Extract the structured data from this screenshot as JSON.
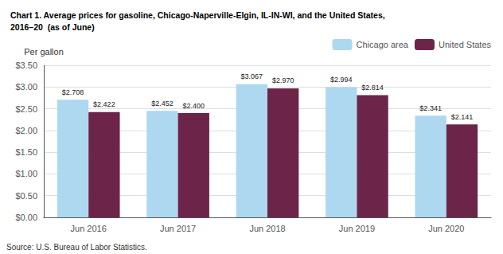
{
  "chart_data": {
    "type": "bar",
    "title": "Chart 1. Average prices for gasoline, Chicago-Naperville-Elgin, IL-IN-WI, and the United States,\n2016–20  (as of June)",
    "ylabel": "Per gallon",
    "annotations": [
      "Source: U.S. Bureau of Labor Statistics."
    ],
    "categories": [
      "Jun 2016",
      "Jun 2017",
      "Jun 2018",
      "Jun 2019",
      "Jun 2020"
    ],
    "series": [
      {
        "name": "Chicago area",
        "color": "#add8f0",
        "values": [
          2.708,
          2.452,
          3.067,
          2.994,
          2.341
        ],
        "value_labels": [
          "$2.708",
          "$2.452",
          "$3.067",
          "$2.994",
          "$2.341"
        ]
      },
      {
        "name": "United States",
        "color": "#6d2449",
        "values": [
          2.422,
          2.4,
          2.97,
          2.814,
          2.141
        ],
        "value_labels": [
          "$2.422",
          "$2.400",
          "$2.970",
          "$2.814",
          "$2.141"
        ]
      }
    ],
    "ylim": [
      0,
      3.5
    ],
    "yticks": [
      {
        "value": 0.0,
        "label": "$0.00"
      },
      {
        "value": 0.5,
        "label": "$0.50"
      },
      {
        "value": 1.0,
        "label": "$1.00"
      },
      {
        "value": 1.5,
        "label": "$1.50"
      },
      {
        "value": 2.0,
        "label": "$2.00"
      },
      {
        "value": 2.5,
        "label": "$2.50"
      },
      {
        "value": 3.0,
        "label": "$3.00"
      },
      {
        "value": 3.5,
        "label": "$3.50"
      }
    ],
    "grid": true,
    "legend": "upper right",
    "data_labels": true
  }
}
